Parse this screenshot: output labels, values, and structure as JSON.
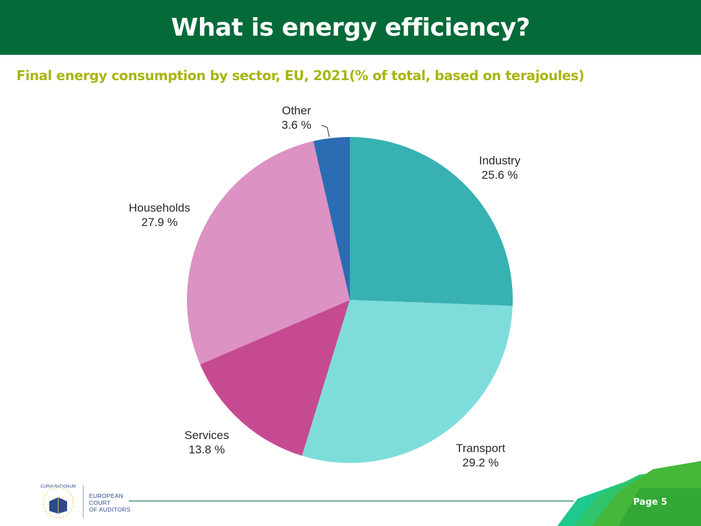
{
  "header": {
    "title": "What is energy efficiency?"
  },
  "chart_data": {
    "type": "pie",
    "title": "Final energy consumption by sector, EU, 2021(% of total, based on terajoules)",
    "unit": "%",
    "slices": [
      {
        "name": "Industry",
        "value": 25.6,
        "label": "25.6 %",
        "color": "#37b1b1"
      },
      {
        "name": "Transport",
        "value": 29.2,
        "label": "29.2 %",
        "color": "#7edddb"
      },
      {
        "name": "Services",
        "value": 13.8,
        "label": "13.8 %",
        "color": "#c54a92"
      },
      {
        "name": "Households",
        "value": 27.9,
        "label": "27.9 %",
        "color": "#dc92c2"
      },
      {
        "name": "Other",
        "value": 3.6,
        "label": "3.6 %",
        "color": "#2b6cb3"
      }
    ],
    "start": "12 o'clock",
    "direction": "clockwise"
  },
  "footer": {
    "logo_lines": [
      "EUROPEAN",
      "COURT",
      "OF AUDITORS"
    ],
    "seal_text": "CURIA RATIONUM",
    "page_label": "Page 5",
    "line_color": "#046a38"
  }
}
